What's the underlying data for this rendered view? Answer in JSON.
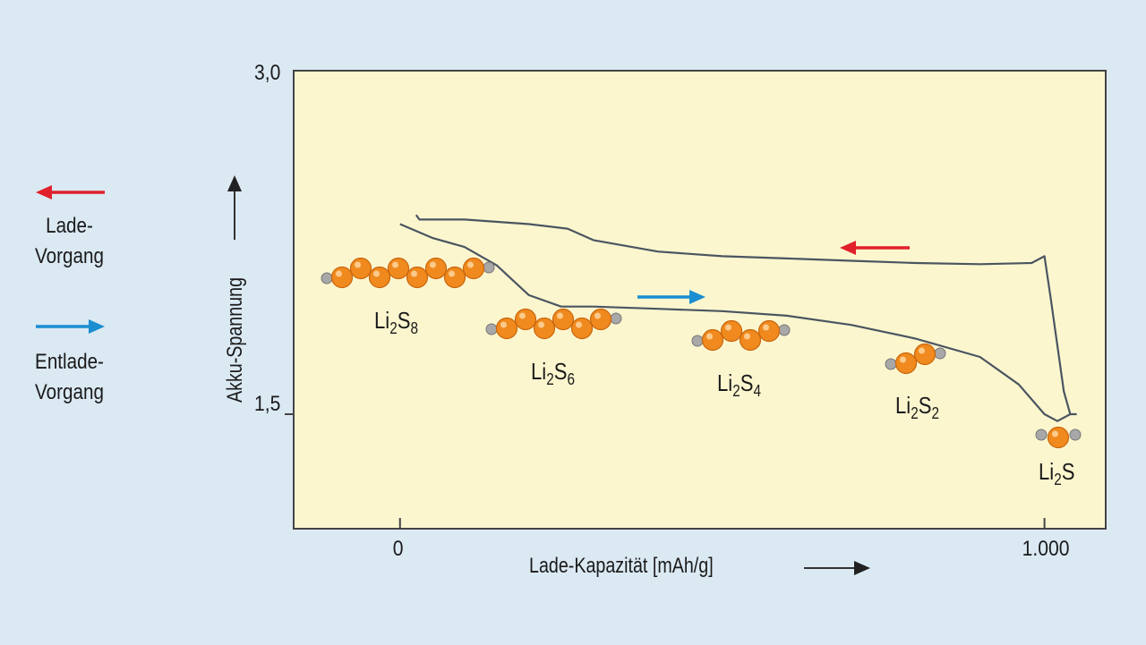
{
  "legend": {
    "charge_label": "Lade-\nVorgang",
    "discharge_label": "Entlade-\nVorgang",
    "charge_color": "#e0202a",
    "discharge_color": "#1a8ed1"
  },
  "molecule_colors": {
    "sulfur": "#f08a1e",
    "lithium": "#a8a8a8"
  },
  "chart_data": {
    "type": "line",
    "xlabel": "Lade-Kapazität [mAh/g]",
    "ylabel": "Akku-Spannung",
    "x_ticks": [
      "0",
      "1.000"
    ],
    "y_ticks": [
      "3,0",
      "1,5"
    ],
    "xlim": [
      -165,
      1095
    ],
    "ylim": [
      1.0,
      3.0
    ],
    "series": [
      {
        "role": "charge",
        "x": [
          25,
          30,
          100,
          200,
          260,
          300,
          400,
          500,
          600,
          700,
          800,
          900,
          980,
          1000,
          1010,
          1020,
          1030,
          1040,
          1050
        ],
        "y": [
          2.37,
          2.35,
          2.35,
          2.33,
          2.31,
          2.26,
          2.21,
          2.19,
          2.18,
          2.17,
          2.16,
          2.155,
          2.16,
          2.19,
          2.0,
          1.8,
          1.6,
          1.5,
          1.5
        ]
      },
      {
        "role": "discharge",
        "x": [
          0,
          50,
          100,
          150,
          200,
          250,
          300,
          400,
          500,
          600,
          700,
          800,
          900,
          960,
          1000,
          1020,
          1040
        ],
        "y": [
          2.33,
          2.27,
          2.23,
          2.15,
          2.02,
          1.97,
          1.97,
          1.96,
          1.95,
          1.93,
          1.89,
          1.83,
          1.75,
          1.63,
          1.5,
          1.47,
          1.5
        ]
      }
    ],
    "annotations": [
      {
        "text": "Li2S8",
        "base": "Li",
        "sub1": "2",
        "el": "S",
        "sub2": "8",
        "sulfur_atoms": 8
      },
      {
        "text": "Li2S6",
        "base": "Li",
        "sub1": "2",
        "el": "S",
        "sub2": "6",
        "sulfur_atoms": 6
      },
      {
        "text": "Li2S4",
        "base": "Li",
        "sub1": "2",
        "el": "S",
        "sub2": "4",
        "sulfur_atoms": 4
      },
      {
        "text": "Li2S2",
        "base": "Li",
        "sub1": "2",
        "el": "S",
        "sub2": "2",
        "sulfur_atoms": 2
      },
      {
        "text": "Li2S",
        "base": "Li",
        "sub1": "2",
        "el": "S",
        "sub2": "",
        "sulfur_atoms": 1
      }
    ]
  }
}
